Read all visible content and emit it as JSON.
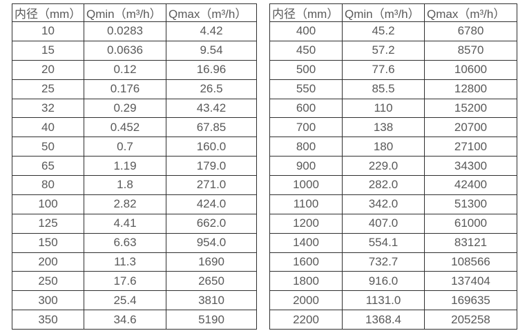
{
  "page": {
    "background_color": "#ffffff",
    "border_color": "#2e2e2e",
    "text_color": "#595959"
  },
  "tables": [
    {
      "name": "small-diameter-flow-table",
      "headers": [
        "内径（mm）",
        "Qmin（m³/h）",
        "Qmax（m³/h）"
      ],
      "rows": [
        [
          "10",
          "0.0283",
          "4.42"
        ],
        [
          "15",
          "0.0636",
          "9.54"
        ],
        [
          "20",
          "0.12",
          "16.96"
        ],
        [
          "25",
          "0.176",
          "26.5"
        ],
        [
          "32",
          "0.29",
          "43.42"
        ],
        [
          "40",
          "0.452",
          "67.85"
        ],
        [
          "50",
          "0.7",
          "160.0"
        ],
        [
          "65",
          "1.19",
          "179.0"
        ],
        [
          "80",
          "1.8",
          "271.0"
        ],
        [
          "100",
          "2.82",
          "424.0"
        ],
        [
          "125",
          "4.41",
          "662.0"
        ],
        [
          "150",
          "6.63",
          "954.0"
        ],
        [
          "200",
          "11.3",
          "1690"
        ],
        [
          "250",
          "17.6",
          "2650"
        ],
        [
          "300",
          "25.4",
          "3810"
        ],
        [
          "350",
          "34.6",
          "5190"
        ]
      ]
    },
    {
      "name": "large-diameter-flow-table",
      "headers": [
        "内径（mm）",
        "Qmin（m³/h）",
        "Qmax（m³/h）"
      ],
      "rows": [
        [
          "400",
          "45.2",
          "6780"
        ],
        [
          "450",
          "57.2",
          "8570"
        ],
        [
          "500",
          "77.6",
          "10600"
        ],
        [
          "550",
          "85.5",
          "12800"
        ],
        [
          "600",
          "110",
          "15200"
        ],
        [
          "700",
          "138",
          "20700"
        ],
        [
          "800",
          "180",
          "27100"
        ],
        [
          "900",
          "229.0",
          "34300"
        ],
        [
          "1000",
          "282.0",
          "42400"
        ],
        [
          "1100",
          "342.0",
          "51300"
        ],
        [
          "1200",
          "407.0",
          "61000"
        ],
        [
          "1400",
          "554.1",
          "83121"
        ],
        [
          "1600",
          "732.7",
          "108566"
        ],
        [
          "1800",
          "916.0",
          "137404"
        ],
        [
          "2000",
          "1131.0",
          "169635"
        ],
        [
          "2200",
          "1368.4",
          "205258"
        ]
      ]
    }
  ]
}
